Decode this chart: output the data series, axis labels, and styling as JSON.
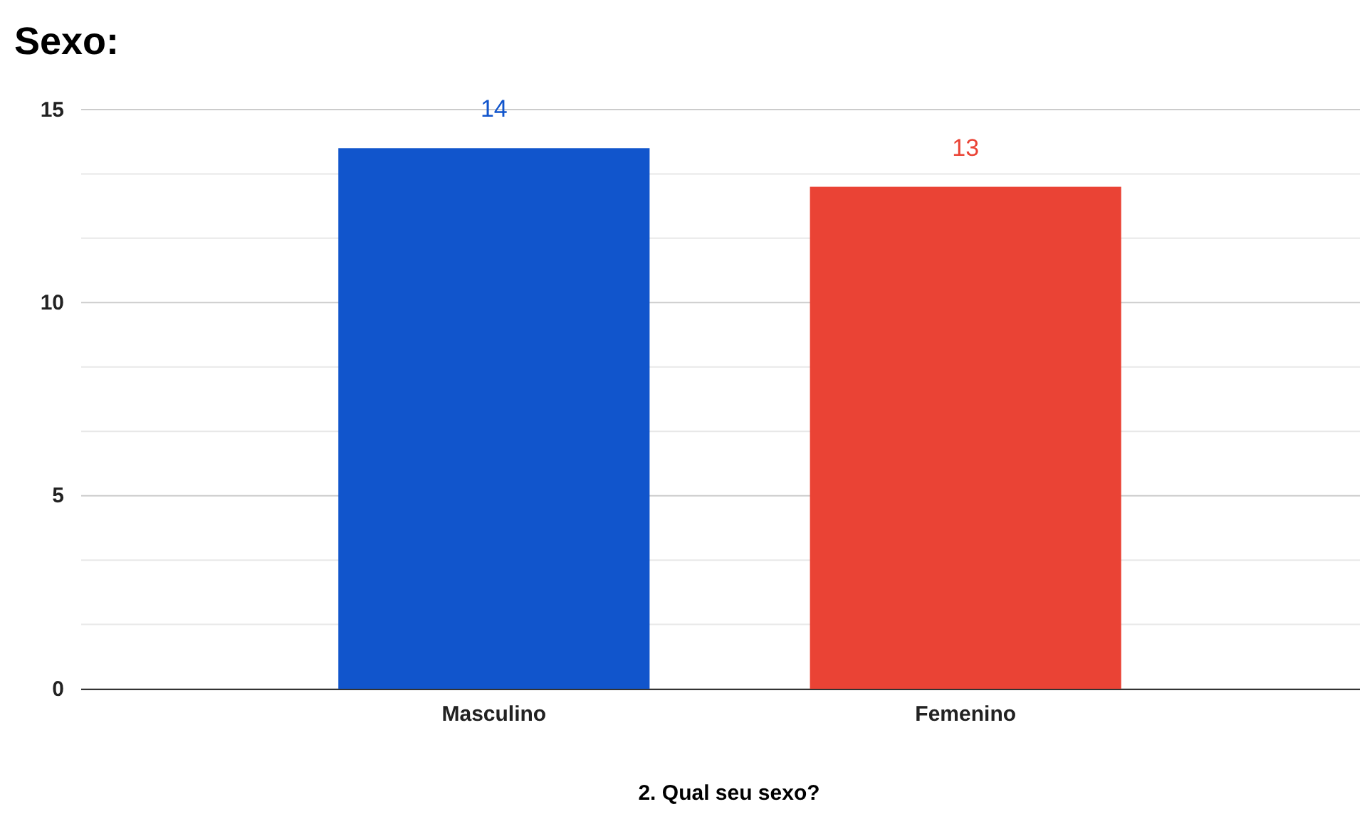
{
  "chart_data": {
    "type": "bar",
    "title": "Sexo:",
    "xlabel": "2. Qual seu sexo?",
    "categories": [
      "Masculino",
      "Femenino"
    ],
    "values": [
      14,
      13
    ],
    "colors": [
      "#1155cc",
      "#ea4335"
    ],
    "ylim": [
      0,
      15
    ],
    "yticks": [
      0,
      {
        "value": 1.667,
        "label": null
      },
      {
        "value": 3.333,
        "label": null
      },
      5,
      {
        "value": 6.667,
        "label": null
      },
      {
        "value": 8.333,
        "label": null
      },
      10,
      {
        "value": 11.667,
        "label": null
      },
      {
        "value": 13.333,
        "label": null
      },
      15
    ],
    "grid": "y",
    "data_labels": true
  }
}
